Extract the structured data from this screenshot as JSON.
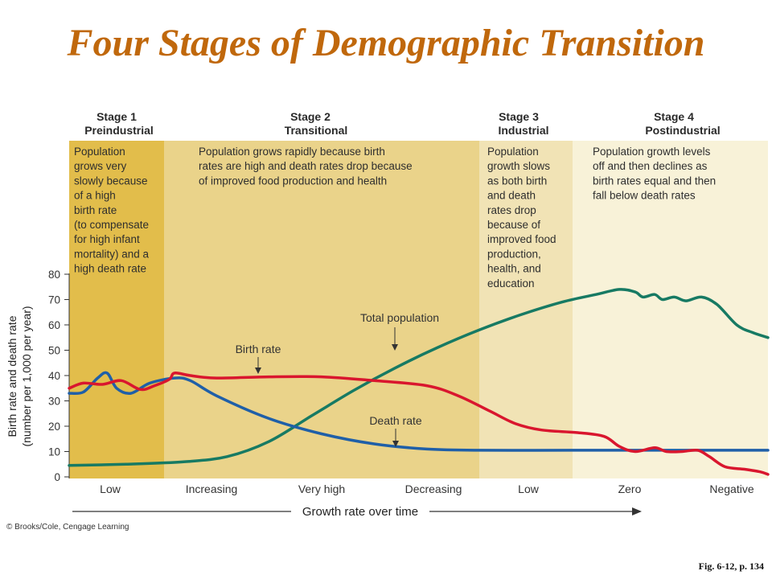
{
  "title": "Four Stages of Demographic Transition",
  "credit": "© Brooks/Cole, Cengage Learning",
  "figure_ref": "Fig. 6-12, p. 134",
  "colors": {
    "title": "#c0680c",
    "stage1_bg": "#e2bd4b",
    "stage2_bg": "#ead38a",
    "stage3_bg": "#f1e3b5",
    "stage4_bg": "#f8f2d8",
    "birth_rate": "#d9162e",
    "death_rate": "#1f5fa8",
    "total_population": "#177a63"
  },
  "stages": [
    {
      "line1": "Stage 1",
      "line2": "Preindustrial",
      "description": [
        "Population",
        "grows very",
        "slowly because",
        "of a high",
        "birth rate",
        "(to compensate",
        "for high infant",
        "mortality) and a",
        "high death rate"
      ]
    },
    {
      "line1": "Stage 2",
      "line2": "Transitional",
      "description": [
        "Population grows rapidly because birth",
        "rates are high and death rates drop because",
        "of improved food production and health"
      ]
    },
    {
      "line1": "Stage 3",
      "line2": "Industrial",
      "description": [
        "Population",
        "growth slows",
        "as both birth",
        "and death",
        "rates drop",
        "because of",
        "improved food",
        "production,",
        "health, and",
        "education"
      ]
    },
    {
      "line1": "Stage 4",
      "line2": "Postindustrial",
      "description": [
        "Population growth levels",
        "off and then declines as",
        "birth rates equal and then",
        "fall below death rates"
      ]
    }
  ],
  "annotations": {
    "birth_rate": "Birth rate",
    "death_rate": "Death rate",
    "total_population": "Total population"
  },
  "chart_data": {
    "type": "line",
    "ylabel": "Birth rate and death rate (number per 1,000 per year)",
    "ylabel_line1": "Birth rate and death rate",
    "ylabel_line2": "(number per 1,000 per year)",
    "xlabel": "Growth rate over time",
    "ylim": [
      0,
      80
    ],
    "yticks": [
      0,
      10,
      20,
      30,
      40,
      50,
      60,
      70,
      80
    ],
    "x_categories": [
      "Low",
      "Increasing",
      "Very high",
      "Decreasing",
      "Low",
      "Zero",
      "Negative"
    ],
    "stage_boundaries": [
      0,
      1,
      4,
      4.9,
      7.4
    ],
    "series": [
      {
        "name": "Birth rate",
        "color": "#d9162e",
        "points": [
          [
            0,
            35
          ],
          [
            0.15,
            37
          ],
          [
            0.35,
            36.5
          ],
          [
            0.55,
            38
          ],
          [
            0.75,
            34.5
          ],
          [
            0.9,
            36
          ],
          [
            1.05,
            38.5
          ],
          [
            1.1,
            41
          ],
          [
            1.25,
            40
          ],
          [
            1.5,
            39
          ],
          [
            2.0,
            39.5
          ],
          [
            2.5,
            39.5
          ],
          [
            3.0,
            38
          ],
          [
            3.5,
            36
          ],
          [
            3.8,
            32
          ],
          [
            4.1,
            26
          ],
          [
            4.35,
            21
          ],
          [
            4.6,
            18.5
          ],
          [
            4.95,
            17.5
          ],
          [
            5.3,
            16
          ],
          [
            5.5,
            12
          ],
          [
            5.7,
            10
          ],
          [
            5.95,
            11.5
          ],
          [
            6.1,
            10
          ],
          [
            6.3,
            10
          ],
          [
            6.5,
            10.5
          ],
          [
            6.65,
            8
          ],
          [
            6.85,
            4
          ],
          [
            7.1,
            3
          ],
          [
            7.3,
            2
          ],
          [
            7.4,
            1
          ]
        ]
      },
      {
        "name": "Death rate",
        "color": "#1f5fa8",
        "points": [
          [
            0,
            33
          ],
          [
            0.15,
            33.5
          ],
          [
            0.3,
            39
          ],
          [
            0.4,
            41
          ],
          [
            0.5,
            35
          ],
          [
            0.65,
            33
          ],
          [
            0.85,
            37
          ],
          [
            1.1,
            39
          ],
          [
            1.25,
            38
          ],
          [
            1.5,
            32
          ],
          [
            2.0,
            23
          ],
          [
            2.5,
            17
          ],
          [
            3.0,
            13
          ],
          [
            3.5,
            11
          ],
          [
            4.0,
            10.5
          ],
          [
            4.9,
            10.5
          ],
          [
            6.0,
            10.5
          ],
          [
            7.4,
            10.5
          ]
        ]
      },
      {
        "name": "Total population",
        "color": "#177a63",
        "points": [
          [
            0,
            4.5
          ],
          [
            0.6,
            5
          ],
          [
            1.2,
            6
          ],
          [
            1.6,
            8
          ],
          [
            2.0,
            14
          ],
          [
            2.4,
            24
          ],
          [
            2.8,
            34
          ],
          [
            3.2,
            43
          ],
          [
            3.6,
            51
          ],
          [
            4.0,
            58
          ],
          [
            4.4,
            64
          ],
          [
            4.8,
            69
          ],
          [
            5.2,
            72
          ],
          [
            5.5,
            74
          ],
          [
            5.7,
            73
          ],
          [
            5.8,
            71
          ],
          [
            5.95,
            72
          ],
          [
            6.05,
            70
          ],
          [
            6.2,
            71
          ],
          [
            6.35,
            69.5
          ],
          [
            6.55,
            71
          ],
          [
            6.75,
            68
          ],
          [
            7.0,
            60
          ],
          [
            7.2,
            57
          ],
          [
            7.4,
            55
          ]
        ]
      }
    ]
  }
}
